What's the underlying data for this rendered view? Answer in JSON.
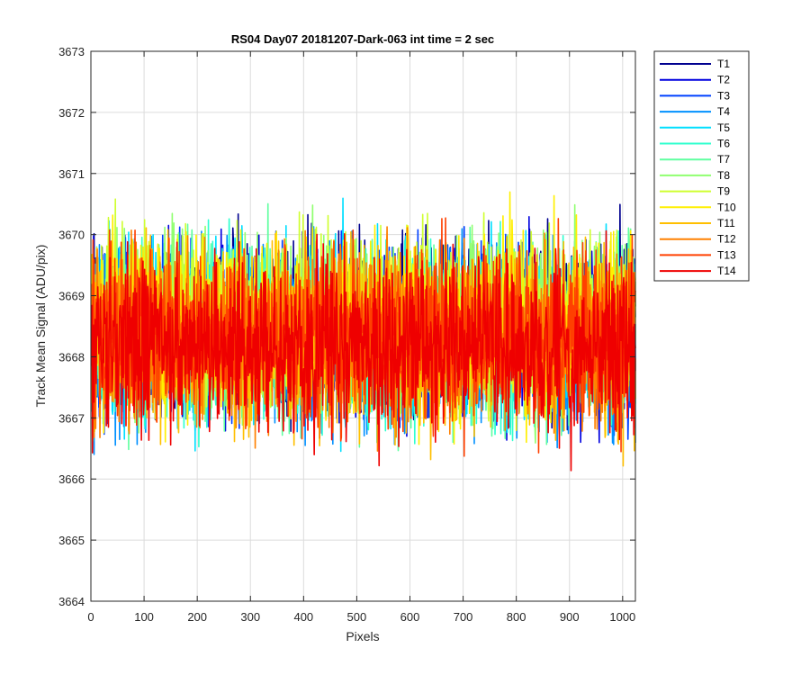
{
  "chart_data": {
    "type": "line",
    "title": "RS04 Day07 20181207-Dark-063 int time = 2 sec",
    "xlabel": "Pixels",
    "ylabel": "Track Mean Signal (ADU/pix)",
    "xlim": [
      0,
      1024
    ],
    "ylim": [
      3664,
      3673
    ],
    "xticks": [
      0,
      100,
      200,
      300,
      400,
      500,
      600,
      700,
      800,
      900,
      1000
    ],
    "yticks": [
      3664,
      3665,
      3666,
      3667,
      3668,
      3669,
      3670,
      3671,
      3672,
      3673
    ],
    "grid": true,
    "legend_position": "outside-right-top",
    "points_per_series": 1024,
    "noise_amplitude": 1.0,
    "series": [
      {
        "name": "T1",
        "color": "#00008f",
        "mean": 3668.5
      },
      {
        "name": "T2",
        "color": "#0000df",
        "mean": 3668.4
      },
      {
        "name": "T3",
        "color": "#0040ff",
        "mean": 3668.4
      },
      {
        "name": "T4",
        "color": "#0090ff",
        "mean": 3668.3
      },
      {
        "name": "T5",
        "color": "#00dfff",
        "mean": 3668.4
      },
      {
        "name": "T6",
        "color": "#30ffcf",
        "mean": 3668.4
      },
      {
        "name": "T7",
        "color": "#60ffa0",
        "mean": 3668.4
      },
      {
        "name": "T8",
        "color": "#90ff70",
        "mean": 3668.5
      },
      {
        "name": "T9",
        "color": "#cfff30",
        "mean": 3668.6
      },
      {
        "name": "T10",
        "color": "#ffef00",
        "mean": 3668.6
      },
      {
        "name": "T11",
        "color": "#ffbf00",
        "mean": 3668.3
      },
      {
        "name": "T12",
        "color": "#ff8000",
        "mean": 3668.3
      },
      {
        "name": "T13",
        "color": "#ff4000",
        "mean": 3668.3
      },
      {
        "name": "T14",
        "color": "#ef0000",
        "mean": 3668.2
      }
    ]
  }
}
